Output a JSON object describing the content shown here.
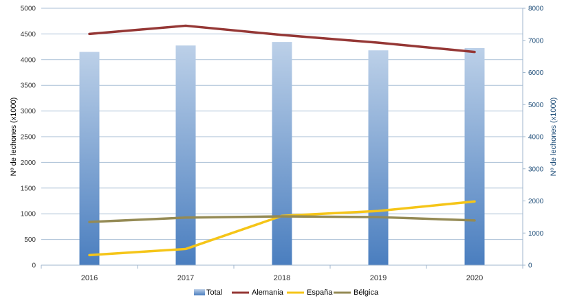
{
  "chart_data": {
    "type": "bar",
    "categories": [
      "2016",
      "2017",
      "2018",
      "2019",
      "2020"
    ],
    "series": [
      {
        "name": "Total",
        "kind": "bar",
        "axis": "right",
        "color": "#4a7ebf",
        "values": [
          6640,
          6840,
          6950,
          6690,
          6760
        ]
      },
      {
        "name": "Alemania",
        "kind": "line",
        "axis": "left",
        "color": "#953735",
        "values": [
          4500,
          4660,
          4480,
          4330,
          4150
        ]
      },
      {
        "name": "España",
        "kind": "line",
        "axis": "left",
        "color": "#f5c518",
        "values": [
          195,
          315,
          960,
          1055,
          1240
        ]
      },
      {
        "name": "Bélgica",
        "kind": "line",
        "axis": "left",
        "color": "#948a54",
        "values": [
          840,
          925,
          950,
          935,
          870
        ]
      }
    ],
    "ylabel": "Nº de lechones (x1000)",
    "y2label": "Nº de lechones (x1000)",
    "ylim": [
      0,
      5000
    ],
    "y2lim": [
      0,
      8000
    ],
    "yticks": [
      "0",
      "500",
      "1000",
      "1500",
      "2000",
      "2500",
      "3000",
      "3500",
      "4000",
      "4500",
      "5000"
    ],
    "y2ticks": [
      "0",
      "1000",
      "2000",
      "3000",
      "4000",
      "5000",
      "6000",
      "7000",
      "8000"
    ],
    "grid": true,
    "legend": "bottom",
    "legend_entries": [
      "Total",
      "Alemania",
      "España",
      "Bélgica"
    ]
  }
}
